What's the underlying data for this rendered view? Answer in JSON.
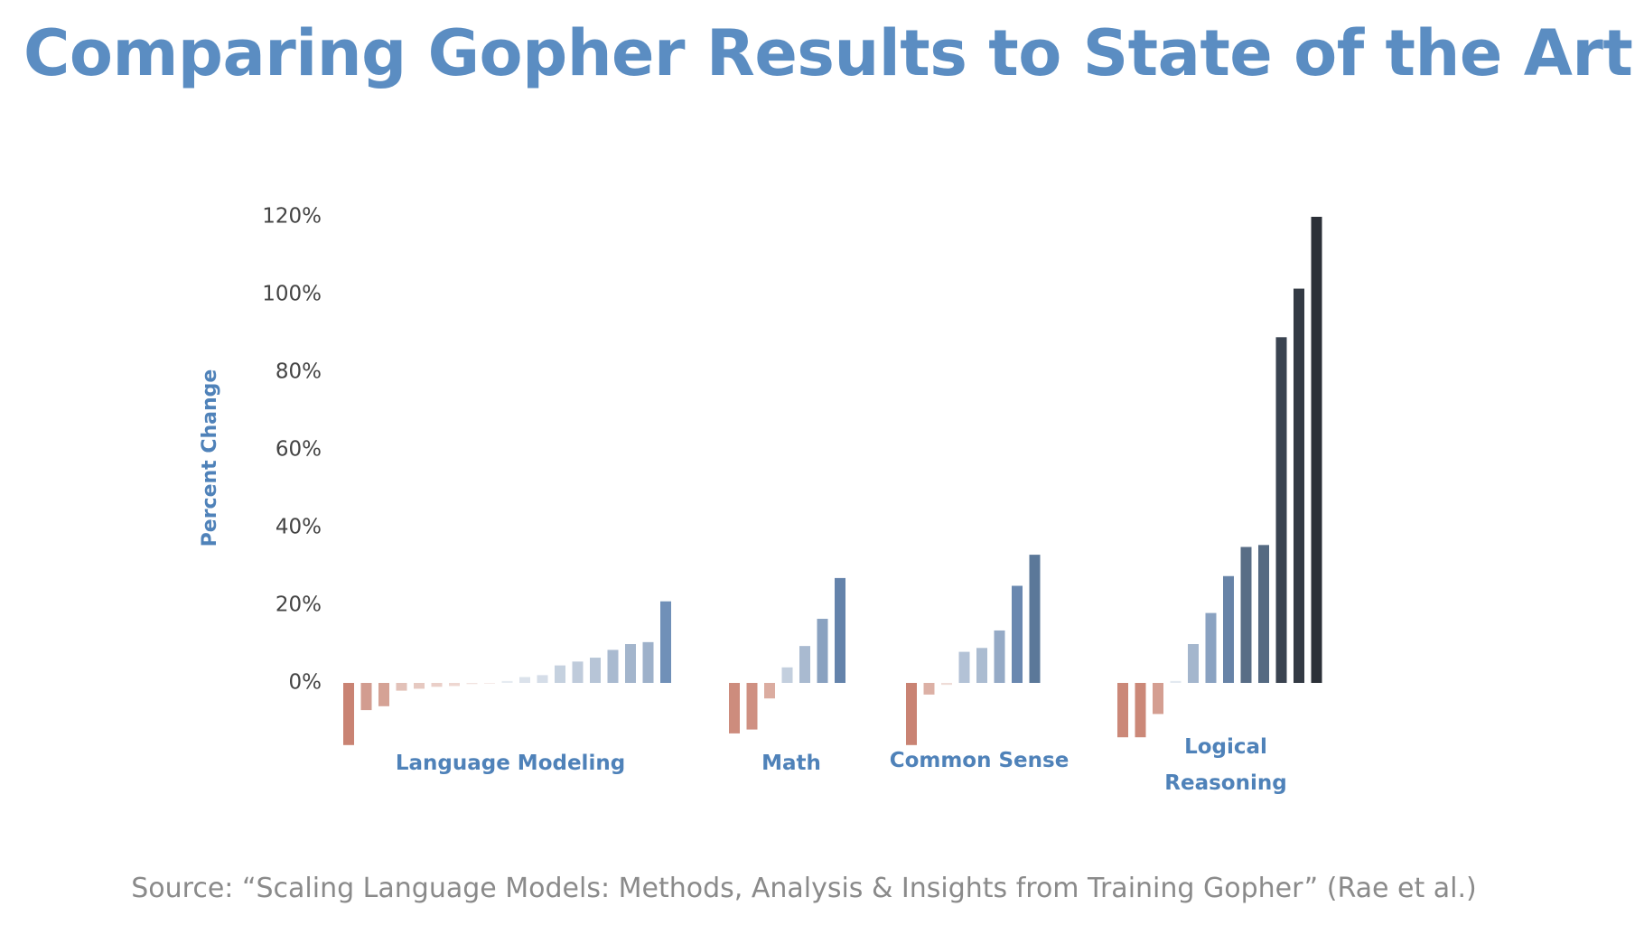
{
  "chart_data": {
    "type": "bar",
    "title": "Comparing Gopher Results to State of the Art",
    "y_label": "Percent Change",
    "source": "Source: “Scaling Language Models: Methods, Analysis & Insights from Training Gopher” (Rae et al.)",
    "ylim": [
      -20,
      120
    ],
    "yticks": [
      {
        "value": 0,
        "label": "0%"
      },
      {
        "value": 20,
        "label": "20%"
      },
      {
        "value": 40,
        "label": "40%"
      },
      {
        "value": 60,
        "label": "60%"
      },
      {
        "value": 80,
        "label": "80%"
      },
      {
        "value": 100,
        "label": "100%"
      },
      {
        "value": 120,
        "label": "120%"
      }
    ],
    "series": [
      {
        "name": "Language Modeling",
        "values": [
          -16,
          -7,
          -6,
          -2,
          -1.5,
          -1,
          -0.8,
          -0.3,
          -0.2,
          0.5,
          1.5,
          2,
          4.5,
          5.5,
          6.5,
          8.5,
          10,
          10.5,
          21
        ],
        "colors": [
          "#c98373",
          "#d29c90",
          "#d5a295",
          "#e2c1b8",
          "#e6c9c1",
          "#eacfc8",
          "#eed7d1",
          "#f2e3df",
          "#f4e8e5",
          "#e6ebf1",
          "#dbe2eb",
          "#d5dde8",
          "#c5d1df",
          "#bfcbdb",
          "#b7c5d7",
          "#a9bad0",
          "#a3b5cc",
          "#9eb1ca",
          "#7090b8"
        ]
      },
      {
        "name": "Math",
        "values": [
          -13,
          -12,
          -4,
          4,
          9.5,
          16.5,
          27
        ],
        "colors": [
          "#cd8c7d",
          "#cf9082",
          "#dbaca0",
          "#c3cfde",
          "#a9bad0",
          "#89a1c0",
          "#6483ab"
        ]
      },
      {
        "name": "Common Sense",
        "values": [
          -16,
          -3,
          -0.5,
          8,
          9,
          13.5,
          25,
          33
        ],
        "colors": [
          "#c98373",
          "#dcb0a5",
          "#efdcd7",
          "#b3c2d6",
          "#abbcd1",
          "#95aac6",
          "#6a88b0",
          "#5b7899"
        ]
      },
      {
        "name": "Logical Reasoning",
        "values": [
          -14,
          -14,
          -8,
          0.5,
          10,
          18,
          27.5,
          35,
          35.5,
          89,
          101.5,
          120
        ],
        "colors": [
          "#cb8878",
          "#cb8878",
          "#d49e91",
          "#e3e9f0",
          "#a4b6cd",
          "#8aa2c1",
          "#6783a7",
          "#586d86",
          "#556a82",
          "#3a4350",
          "#333a44",
          "#2b3038"
        ]
      }
    ]
  }
}
